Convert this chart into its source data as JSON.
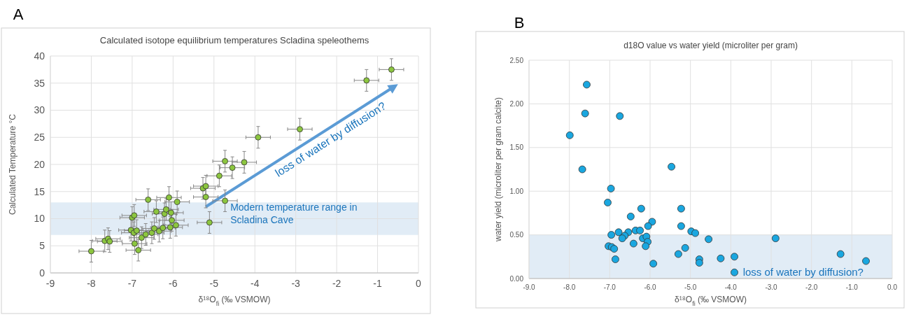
{
  "chart_data": [
    {
      "type": "scatter",
      "title": "Calculated isotope equilibrium temperatures Scladina speleothems",
      "xlabel": "δ¹⁸O$_{fi}$ (‰ VSMOW)",
      "ylabel": "Calculated Temperature °C",
      "annotations": [
        "A",
        "loss of water by diffusion?"
      ],
      "xlim": [
        -9,
        0
      ],
      "xticks": [
        -9,
        -8,
        -7,
        -6,
        -5,
        -4,
        -3,
        -2,
        -1,
        0
      ],
      "ylim": [
        0,
        40
      ],
      "yticks": [
        0,
        5,
        10,
        15,
        20,
        25,
        30,
        35,
        40
      ],
      "grid": true,
      "marker": "circle",
      "bands": [
        {
          "axis": "y",
          "from": 7,
          "to": 13,
          "label": "Modern temperature range in Scladina Cave",
          "color": "#dce9f5"
        }
      ],
      "series": [
        {
          "color": "#8cc63f",
          "x": [
            -8.0,
            -7.67,
            -7.59,
            -7.55,
            -7.03,
            -7.0,
            -6.95,
            -6.96,
            -6.94,
            -6.89,
            -6.85,
            -6.77,
            -6.67,
            -6.61,
            -6.52,
            -6.46,
            -6.41,
            -6.34,
            -6.25,
            -6.21,
            -6.17,
            -6.1,
            -6.07,
            -6.05,
            -6.03,
            -5.93,
            -5.9,
            -5.27,
            -5.2,
            -5.2,
            -5.11,
            -4.87,
            -4.73,
            -4.73,
            -4.55,
            -4.26,
            -3.92,
            -2.9,
            -1.27,
            -0.66
          ],
          "values": [
            4.0,
            5.9,
            6.3,
            5.8,
            7.9,
            10.2,
            10.6,
            7.4,
            5.4,
            7.8,
            4.2,
            6.5,
            7.1,
            13.5,
            7.4,
            8.2,
            11.3,
            7.7,
            8.3,
            10.9,
            11.7,
            13.9,
            8.4,
            11.1,
            9.7,
            8.8,
            13.1,
            15.6,
            16.0,
            14.0,
            9.3,
            17.9,
            20.6,
            13.3,
            19.4,
            20.4,
            25.0,
            26.5,
            35.5,
            37.5
          ],
          "errors": [
            2,
            2,
            2,
            2,
            2,
            2,
            2,
            2,
            2,
            2,
            2,
            2,
            2,
            2,
            2,
            2,
            2,
            2,
            2,
            2,
            2,
            2,
            2,
            2,
            2,
            2,
            2,
            2,
            2,
            2,
            2,
            2,
            2,
            2,
            2,
            2,
            2,
            2,
            2,
            2
          ],
          "xerrors": [
            0.3,
            0.3,
            0.3,
            0.3,
            0.3,
            0.3,
            0.3,
            0.3,
            0.3,
            0.3,
            0.3,
            0.3,
            0.3,
            0.3,
            0.3,
            0.3,
            0.3,
            0.3,
            0.3,
            0.3,
            0.3,
            0.3,
            0.3,
            0.3,
            0.3,
            0.3,
            0.3,
            0.3,
            0.3,
            0.3,
            0.3,
            0.3,
            0.3,
            0.3,
            0.3,
            0.3,
            0.3,
            0.3,
            0.3,
            0.3
          ]
        }
      ]
    },
    {
      "type": "scatter",
      "title": "d18O value vs water yield (microliter per gram)",
      "xlabel": "δ¹⁸O$_{fi}$ (‰ VSMOW)",
      "ylabel": "water yield (microliter per gram calcite)",
      "annotations": [
        "B",
        "loss of water by diffusion?"
      ],
      "xlim": [
        -9,
        0
      ],
      "xticks": [
        {
          "value": -9,
          "label": "-9.0"
        },
        {
          "value": -8,
          "label": "-8.0"
        },
        {
          "value": -7,
          "label": "-7.0"
        },
        {
          "value": -6,
          "label": "-6.0"
        },
        {
          "value": -5,
          "label": "-5.0"
        },
        {
          "value": -4,
          "label": "-4.0"
        },
        {
          "value": -3,
          "label": "-3.0"
        },
        {
          "value": -2,
          "label": "-2.0"
        },
        {
          "value": -1,
          "label": "-1.0"
        },
        {
          "value": 0,
          "label": "0.0"
        }
      ],
      "ylim": [
        0,
        2.5
      ],
      "yticks": [
        {
          "value": 0,
          "label": "0.00"
        },
        {
          "value": 0.5,
          "label": "0.50"
        },
        {
          "value": 1,
          "label": "1.00"
        },
        {
          "value": 1.5,
          "label": "1.50"
        },
        {
          "value": 2,
          "label": "2.00"
        },
        {
          "value": 2.5,
          "label": "2.50"
        }
      ],
      "grid": true,
      "marker": "circle",
      "bands": [
        {
          "axis": "y",
          "from": 0,
          "to": 0.5,
          "color": "#dce9f5"
        }
      ],
      "series": [
        {
          "color": "#1aa7e0",
          "x": [
            -7.99,
            -7.57,
            -7.61,
            -7.68,
            -6.75,
            -6.97,
            -7.05,
            -6.22,
            -6.48,
            -5.95,
            -6.05,
            -6.78,
            -6.96,
            -6.54,
            -6.36,
            -6.25,
            -6.63,
            -6.69,
            -6.18,
            -6.09,
            -6.06,
            -6.41,
            -6.11,
            -7.03,
            -6.95,
            -6.89,
            -6.86,
            -5.92,
            -5.47,
            -5.23,
            -5.23,
            -5.3,
            -5.13,
            -4.98,
            -4.88,
            -4.78,
            -4.78,
            -4.55,
            -4.25,
            -3.91,
            -3.91,
            -2.89,
            -1.28,
            -0.65
          ],
          "values": [
            1.64,
            2.22,
            1.89,
            1.25,
            1.86,
            1.03,
            0.87,
            0.8,
            0.71,
            0.65,
            0.6,
            0.53,
            0.5,
            0.53,
            0.55,
            0.55,
            0.49,
            0.46,
            0.46,
            0.48,
            0.42,
            0.4,
            0.37,
            0.37,
            0.36,
            0.34,
            0.22,
            0.17,
            1.28,
            0.8,
            0.6,
            0.28,
            0.35,
            0.54,
            0.52,
            0.22,
            0.18,
            0.45,
            0.23,
            0.25,
            0.07,
            0.46,
            0.28,
            0.2
          ]
        }
      ]
    }
  ]
}
